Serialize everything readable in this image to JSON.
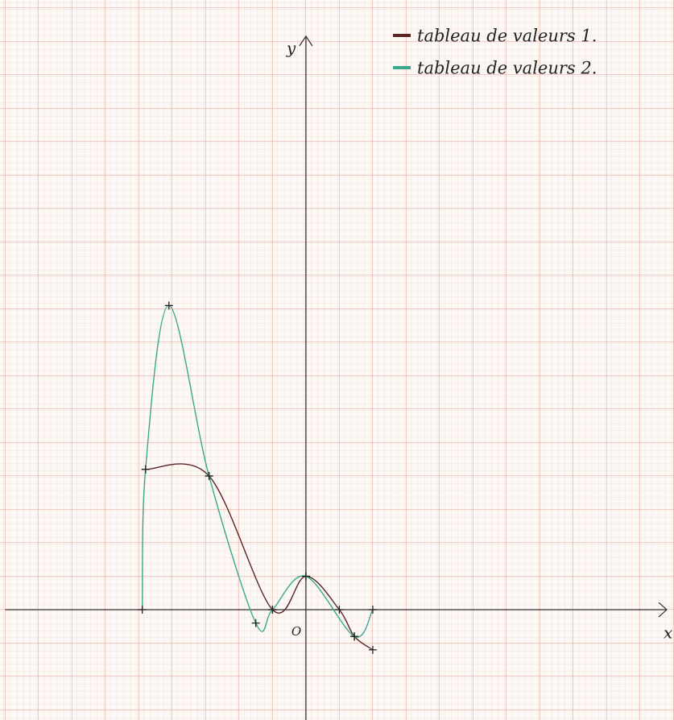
{
  "chart_data": {
    "type": "line",
    "x_label": "x",
    "y_label": "y",
    "origin_label": "O",
    "xlim": [
      -9,
      10.8
    ],
    "ylim": [
      -3.3,
      17.3
    ],
    "legend": "top-right",
    "series": [
      {
        "name": "tableau de valeurs 1.",
        "color": "#5a2424",
        "x": [
          -4.8,
          -2.9,
          -1.0,
          0,
          1.0,
          1.45,
          2.0
        ],
        "values": [
          4.2,
          4.0,
          0,
          1.0,
          0,
          -0.8,
          -1.2
        ]
      },
      {
        "name": "tableau de valeurs 2.",
        "color": "#3aa88a",
        "x": [
          -4.9,
          -4.8,
          -4.1,
          -2.9,
          -1.5,
          -1.0,
          0,
          1.45,
          2.0
        ],
        "values": [
          0,
          4.2,
          9.1,
          4.0,
          -0.4,
          0,
          1.0,
          -0.8,
          0
        ]
      }
    ]
  }
}
